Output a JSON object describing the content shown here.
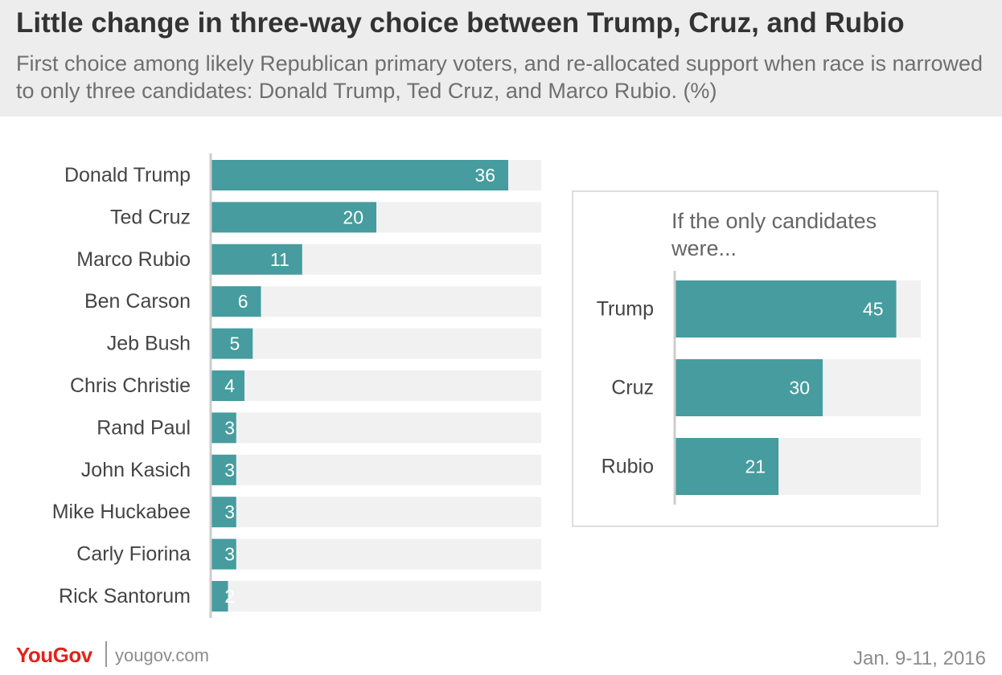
{
  "header": {
    "title": "Little change in three-way choice between Trump, Cruz, and Rubio",
    "subtitle": "First choice among likely Republican primary voters, and re-allocated support when race is narrowed to only three candidates: Donald Trump, Ted Cruz, and Marco Rubio. (%)"
  },
  "inset": {
    "title": "If the only candidates were..."
  },
  "footer": {
    "logo": "YouGov",
    "site": "yougov.com",
    "date": "Jan. 9-11, 2016"
  },
  "colors": {
    "bar": "#469c9e",
    "track": "#f1f1f1",
    "axis": "#cccccc",
    "header_bg": "#ededed",
    "logo": "#e2231a"
  },
  "chart_data": [
    {
      "type": "bar",
      "orientation": "horizontal",
      "categories": [
        "Donald Trump",
        "Ted Cruz",
        "Marco Rubio",
        "Ben Carson",
        "Jeb Bush",
        "Chris Christie",
        "Rand Paul",
        "John Kasich",
        "Mike Huckabee",
        "Carly Fiorina",
        "Rick Santorum"
      ],
      "values": [
        36,
        20,
        11,
        6,
        5,
        4,
        3,
        3,
        3,
        3,
        2
      ],
      "title": "",
      "xlabel": "",
      "ylabel": "",
      "xlim": [
        0,
        40
      ],
      "grid": false
    },
    {
      "type": "bar",
      "orientation": "horizontal",
      "categories": [
        "Trump",
        "Cruz",
        "Rubio"
      ],
      "values": [
        45,
        30,
        21
      ],
      "title": "If the only candidates were...",
      "xlabel": "",
      "ylabel": "",
      "xlim": [
        0,
        50
      ],
      "grid": false
    }
  ]
}
